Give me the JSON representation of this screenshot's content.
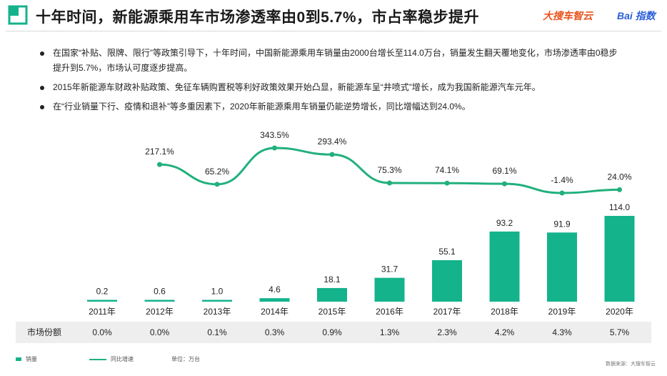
{
  "header": {
    "title": "十年时间，新能源乘用车市场渗透率由0到5.7%，市占率稳步提升",
    "brand_left": "大搜车智云",
    "brand_right": "Bai 指数"
  },
  "bullets": [
    "在国家“补贴、限牌、限行”等政策引导下，十年时间，中国新能源乘用车销量由2000台增长至114.0万台，销量发生翻天覆地变化，市场渗透率由0稳步提升到5.7%，市场认可度逐步提高。",
    "2015年新能源车财政补贴政策、免征车辆购置税等利好政策效果开始凸显，新能源车呈“井喷式”增长，成为我国新能源汽车元年。",
    "在“行业销量下行、疫情和退补”等多重因素下，2020年新能源乘用车销量仍能逆势增长，同比增幅达到24.0%。"
  ],
  "chart_data": {
    "type": "bar",
    "categories": [
      "2011年",
      "2012年",
      "2013年",
      "2014年",
      "2015年",
      "2016年",
      "2017年",
      "2018年",
      "2019年",
      "2020年"
    ],
    "series": [
      {
        "name": "销量",
        "type": "bar",
        "values": [
          0.2,
          0.6,
          1.0,
          4.6,
          18.1,
          31.7,
          55.1,
          93.2,
          91.9,
          114.0
        ],
        "labels": [
          "0.2",
          "0.6",
          "1.0",
          "4.6",
          "18.1",
          "31.7",
          "55.1",
          "93.2",
          "91.9",
          "114.0"
        ]
      },
      {
        "name": "同比增速",
        "type": "line",
        "values": [
          null,
          217.1,
          65.2,
          343.5,
          293.4,
          75.3,
          74.1,
          69.1,
          -1.4,
          24.0
        ],
        "labels": [
          "",
          "217.1%",
          "65.2%",
          "343.5%",
          "293.4%",
          "75.3%",
          "74.1%",
          "69.1%",
          "-1.4%",
          "24.0%"
        ]
      }
    ],
    "share_row": {
      "label": "市场份额",
      "values": [
        "0.0%",
        "0.0%",
        "0.1%",
        "0.3%",
        "0.9%",
        "1.3%",
        "2.3%",
        "4.2%",
        "4.3%",
        "5.7%"
      ]
    },
    "unit": "单位：万台",
    "legend": [
      "销量",
      "同比增速"
    ],
    "colors": {
      "bar": "#14b38c",
      "line": "#22b07d",
      "text": "#222222"
    }
  },
  "footer": {
    "source": "数据来源：大搜车智云"
  }
}
